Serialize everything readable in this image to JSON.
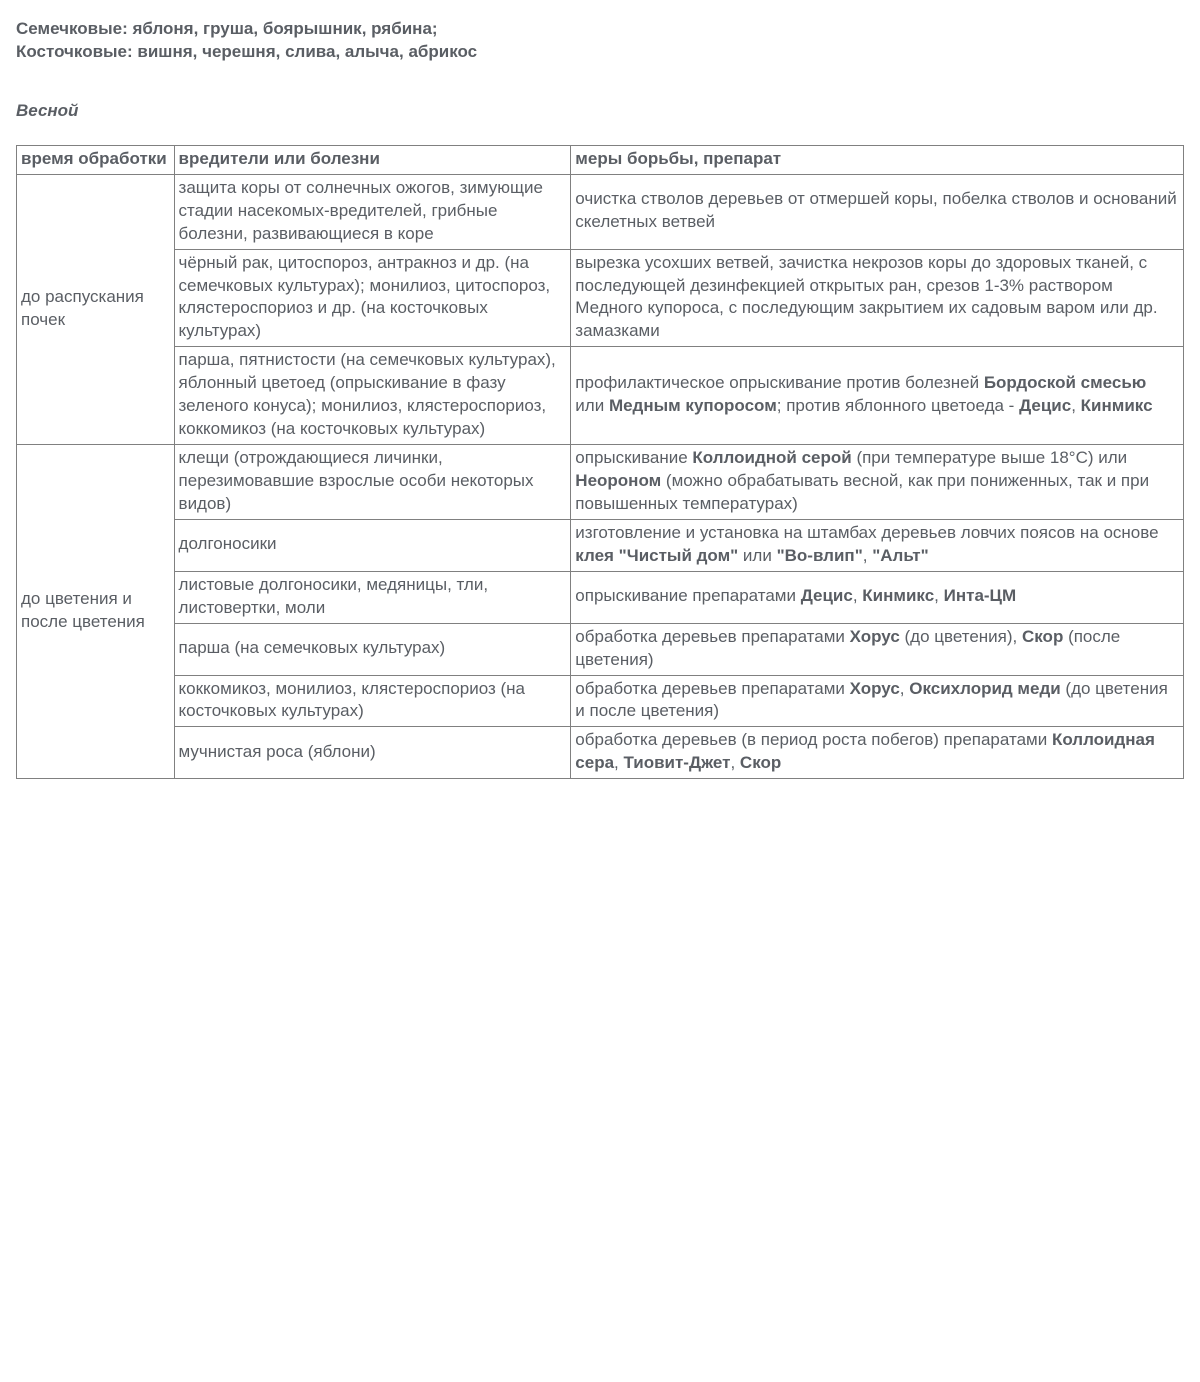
{
  "intro": {
    "line1": "Семечковые: яблоня, груша, боярышник, рябина;",
    "line2": "Косточковые: вишня, черешня, слива, алыча, абрикос"
  },
  "season": "Весной",
  "headers": {
    "time": "время обработки",
    "pests": "вредители или болезни",
    "measures": "меры борьбы, препарат"
  },
  "groups": [
    {
      "time": "до распускания почек",
      "rows": [
        {
          "pests": [
            {
              "t": "защита коры от солнечных ожогов, зимующие стадии насекомых-вредителей, грибные болезни, развивающиеся в коре"
            }
          ],
          "measures": [
            {
              "t": "очистка стволов деревьев от отмершей коры, побелка стволов и оснований скелетных ветвей"
            }
          ]
        },
        {
          "pests": [
            {
              "t": "чёрный рак, цитоспороз, антракноз и др. (на семечковых культурах); монилиоз, цитоспороз, клястероспориоз и др. (на косточковых культурах)"
            }
          ],
          "measures": [
            {
              "t": "вырезка усохших ветвей, зачистка некрозов коры до здоровых тканей, с последующей дезинфекцией открытых ран, срезов 1-3% раствором Медного купороса, с последующим закрытием их садовым варом или др. замазками"
            }
          ]
        },
        {
          "pests": [
            {
              "t": "парша, пятнистости (на семечковых культурах), яблонный цветоед (опрыскивание в фазу зеленого конуса); монилиоз, клястероспориоз, коккомикоз (на косточковых культурах)"
            }
          ],
          "measures": [
            {
              "t": "профилактическое опрыскивание против болезней "
            },
            {
              "t": "Бордоской смесью",
              "b": true
            },
            {
              "t": " или "
            },
            {
              "t": "Медным купоросом",
              "b": true
            },
            {
              "t": "; против яблонного цветоеда - "
            },
            {
              "t": "Децис",
              "b": true
            },
            {
              "t": ", "
            },
            {
              "t": "Кинмикс",
              "b": true
            }
          ]
        }
      ]
    },
    {
      "time": "до цветения и после цветения",
      "rows": [
        {
          "pests": [
            {
              "t": "клещи (отрождающиеся личинки, перезимовавшие взрослые особи некоторых видов)"
            }
          ],
          "measures": [
            {
              "t": "опрыскивание "
            },
            {
              "t": "Коллоидной серой",
              "b": true
            },
            {
              "t": " (при температуре выше 18°С) или "
            },
            {
              "t": "Неороном",
              "b": true
            },
            {
              "t": " (можно обрабатывать весной, как при пониженных, так и при повышенных температурах)"
            }
          ]
        },
        {
          "pests": [
            {
              "t": "долгоносики"
            }
          ],
          "measures": [
            {
              "t": "изготовление и установка на штамбах деревьев ловчих поясов на основе "
            },
            {
              "t": "клея \"Чистый дом\"",
              "b": true
            },
            {
              "t": " или "
            },
            {
              "t": "\"Во-влип\"",
              "b": true
            },
            {
              "t": ", "
            },
            {
              "t": "\"Альт\"",
              "b": true
            }
          ]
        },
        {
          "pests": [
            {
              "t": "листовые долгоносики, медяницы, тли, листовертки, моли"
            }
          ],
          "measures": [
            {
              "t": "опрыскивание препаратами "
            },
            {
              "t": "Децис",
              "b": true
            },
            {
              "t": ", "
            },
            {
              "t": "Кинмикс",
              "b": true
            },
            {
              "t": ", "
            },
            {
              "t": "Инта-ЦМ",
              "b": true
            }
          ]
        },
        {
          "pests": [
            {
              "t": "парша (на семечковых культурах)"
            }
          ],
          "measures": [
            {
              "t": "обработка деревьев препаратами "
            },
            {
              "t": "Хорус",
              "b": true
            },
            {
              "t": " (до цветения), "
            },
            {
              "t": "Скор",
              "b": true
            },
            {
              "t": " (после цветения)"
            }
          ]
        },
        {
          "pests": [
            {
              "t": "коккомикоз, монилиоз, клястероспориоз (на косточковых культурах)"
            }
          ],
          "measures": [
            {
              "t": "обработка деревьев препаратами "
            },
            {
              "t": "Хорус",
              "b": true
            },
            {
              "t": ", "
            },
            {
              "t": "Оксихлорид меди",
              "b": true
            },
            {
              "t": " (до цветения и после цветения)"
            }
          ]
        },
        {
          "pests": [
            {
              "t": "мучнистая роса (яблони)"
            }
          ],
          "measures": [
            {
              "t": "обработка деревьев (в период роста побегов) препаратами "
            },
            {
              "t": "Коллоидная сера",
              "b": true
            },
            {
              "t": ", "
            },
            {
              "t": "Тиовит-Джет",
              "b": true
            },
            {
              "t": ", "
            },
            {
              "t": "Скор",
              "b": true
            }
          ]
        }
      ]
    }
  ]
}
